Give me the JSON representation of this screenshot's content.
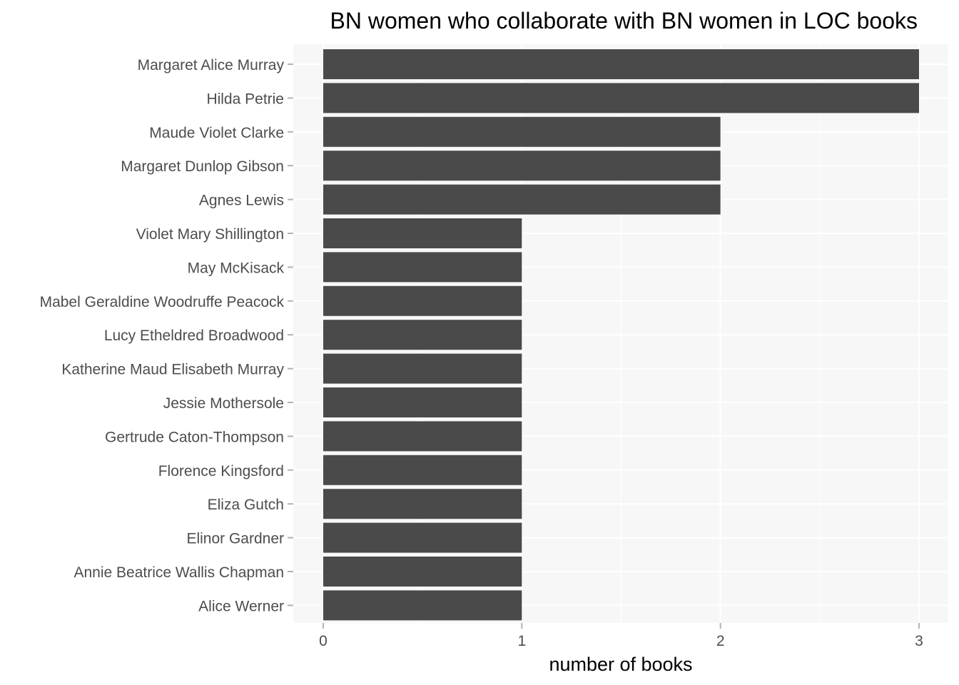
{
  "colors": {
    "panel_background": "#f7f7f7",
    "grid": "#ffffff",
    "bar_fill": "#4a4a4a",
    "tick": "#b3b3b3",
    "tick_label": "#4d4d4d"
  },
  "chart_data": {
    "type": "bar",
    "orientation": "horizontal",
    "title": "BN women who collaborate with BN women in LOC books",
    "xlabel": "number of books",
    "ylabel": "",
    "xlim": [
      0,
      3
    ],
    "x_ticks": [
      0,
      1,
      2,
      3
    ],
    "grid": true,
    "legend": "none",
    "categories": [
      "Margaret Alice Murray",
      "Hilda Petrie",
      "Maude Violet Clarke",
      "Margaret Dunlop Gibson",
      "Agnes Lewis",
      "Violet Mary Shillington",
      "May McKisack",
      "Mabel Geraldine Woodruffe Peacock",
      "Lucy Etheldred Broadwood",
      "Katherine Maud Elisabeth Murray",
      "Jessie Mothersole",
      "Gertrude Caton-Thompson",
      "Florence Kingsford",
      "Eliza Gutch",
      "Elinor Gardner",
      "Annie Beatrice Wallis Chapman",
      "Alice Werner"
    ],
    "values": [
      3,
      3,
      2,
      2,
      2,
      1,
      1,
      1,
      1,
      1,
      1,
      1,
      1,
      1,
      1,
      1,
      1
    ]
  }
}
